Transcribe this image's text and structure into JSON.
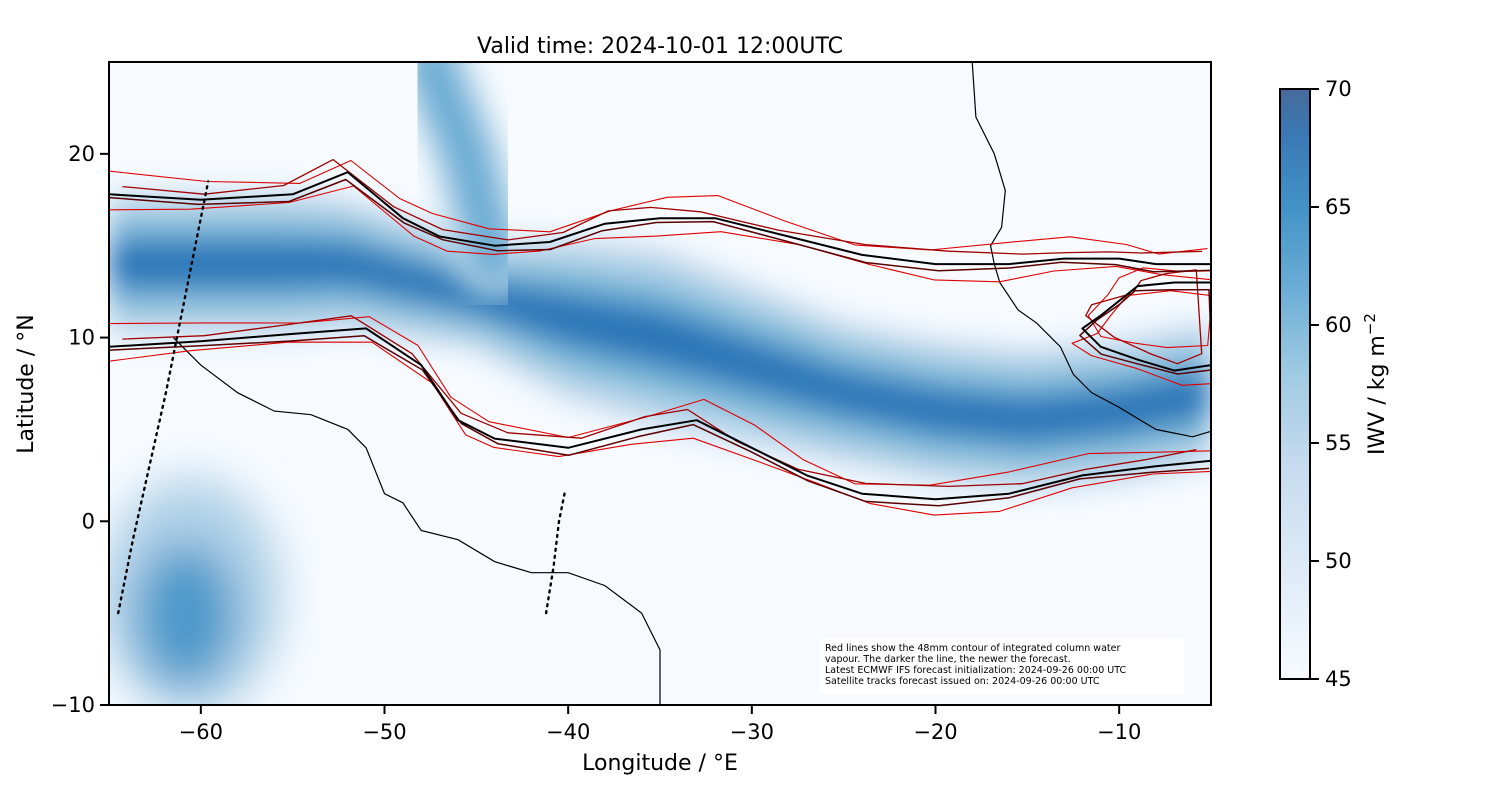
{
  "title": "Valid time: 2024-10-01 12:00UTC",
  "x_axis": {
    "label": "Longitude / °E",
    "range": [
      -65,
      -5
    ],
    "ticks": [
      {
        "value": -60,
        "label": "−60"
      },
      {
        "value": -50,
        "label": "−50"
      },
      {
        "value": -40,
        "label": "−40"
      },
      {
        "value": -30,
        "label": "−30"
      },
      {
        "value": -20,
        "label": "−20"
      },
      {
        "value": -10,
        "label": "−10"
      }
    ]
  },
  "y_axis": {
    "label": "Latitude / °N",
    "range": [
      -10,
      25
    ],
    "ticks": [
      {
        "value": 20,
        "label": "20"
      },
      {
        "value": 10,
        "label": "10"
      },
      {
        "value": 0,
        "label": "0"
      },
      {
        "value": -10,
        "label": "−10"
      }
    ]
  },
  "colorbar": {
    "label": "IWV / kg m",
    "label_superscript": "−2",
    "range": [
      45,
      70
    ],
    "ticks": [
      {
        "value": 70,
        "label": "70"
      },
      {
        "value": 65,
        "label": "65"
      },
      {
        "value": 60,
        "label": "60"
      },
      {
        "value": 55,
        "label": "55"
      },
      {
        "value": 50,
        "label": "50"
      },
      {
        "value": 45,
        "label": "45"
      }
    ],
    "colors": [
      "#f7fbff",
      "#deebf7",
      "#c6dbef",
      "#9ecae1",
      "#6baed6",
      "#4292c6",
      "#2171b5",
      "#466a9a"
    ]
  },
  "annotation": {
    "lines": [
      "Red lines show the 48mm contour of integrated column water",
      "vapour. The darker the line, the newer the forecast.",
      "Latest ECMWF IFS forecast initialization: 2024-09-26 00:00 UTC",
      "Satellite tracks forecast issued on: 2024-09-26 00:00 UTC"
    ]
  },
  "colors": {
    "contour_old": "#e00000",
    "contour_mid": "#a00000",
    "contour_newer": "#5a0000",
    "contour_latest": "#000000",
    "coastline": "#000000",
    "sat_track": "#000000"
  },
  "chart_data": {
    "type": "heatmap",
    "lon_range": [
      -65,
      -5
    ],
    "lat_range": [
      -10,
      25
    ],
    "field": "IWV",
    "value_range": [
      45,
      70
    ],
    "iwv_band": {
      "comment_free": true,
      "center_lat_by_lon": [
        [
          -65,
          14
        ],
        [
          -58,
          14
        ],
        [
          -52,
          14
        ],
        [
          -46,
          12.5
        ],
        [
          -40,
          11
        ],
        [
          -35,
          10
        ],
        [
          -30,
          8.5
        ],
        [
          -25,
          7
        ],
        [
          -20,
          6
        ],
        [
          -15,
          5.5
        ],
        [
          -10,
          6
        ],
        [
          -5,
          7
        ]
      ],
      "half_width_by_lon": [
        [
          -65,
          4
        ],
        [
          -55,
          4
        ],
        [
          -45,
          3
        ],
        [
          -40,
          4.5
        ],
        [
          -35,
          5
        ],
        [
          -30,
          4.5
        ],
        [
          -25,
          4
        ],
        [
          -20,
          4
        ],
        [
          -15,
          4
        ],
        [
          -10,
          4
        ],
        [
          -5,
          4
        ]
      ],
      "peak_value": 66
    },
    "arm_polyline": [
      [
        -47.5,
        25
      ],
      [
        -45.5,
        20
      ],
      [
        -44.5,
        16
      ],
      [
        -44,
        14
      ]
    ],
    "sa_blob": {
      "lon": [
        -65,
        -55
      ],
      "lat": [
        -10,
        3
      ],
      "peak_value": 62
    },
    "sat_tracks": [
      [
        [
          -64.5,
          -5
        ],
        [
          -63.7,
          -1
        ],
        [
          -62.8,
          3
        ],
        [
          -61.9,
          7
        ],
        [
          -61.1,
          11
        ],
        [
          -60.3,
          15
        ],
        [
          -59.6,
          18.5
        ]
      ],
      [
        [
          -41.2,
          -5
        ],
        [
          -40.8,
          -2.5
        ],
        [
          -40.5,
          0
        ],
        [
          -40.2,
          1.5
        ]
      ]
    ],
    "contours_48mm": {
      "north_edge": [
        [
          -65,
          17.8
        ],
        [
          -60,
          17.5
        ],
        [
          -55,
          17.8
        ],
        [
          -52,
          19
        ],
        [
          -49,
          16.5
        ],
        [
          -47,
          15.5
        ],
        [
          -44,
          15
        ],
        [
          -41,
          15.2
        ],
        [
          -38,
          16.2
        ],
        [
          -35,
          16.5
        ],
        [
          -32,
          16.5
        ],
        [
          -28,
          15.5
        ],
        [
          -24,
          14.5
        ],
        [
          -20,
          14
        ],
        [
          -16,
          14
        ],
        [
          -13,
          14.3
        ],
        [
          -10,
          14.3
        ],
        [
          -8,
          14
        ],
        [
          -5,
          14
        ]
      ],
      "south_edge": [
        [
          -65,
          9.5
        ],
        [
          -60,
          9.8
        ],
        [
          -55,
          10.2
        ],
        [
          -51,
          10.5
        ],
        [
          -48,
          8.5
        ],
        [
          -46,
          5.5
        ],
        [
          -44,
          4.5
        ],
        [
          -40,
          4
        ],
        [
          -36,
          5
        ],
        [
          -33,
          5.5
        ],
        [
          -30,
          4
        ],
        [
          -27,
          2.5
        ],
        [
          -24,
          1.5
        ],
        [
          -20,
          1.2
        ],
        [
          -16,
          1.5
        ],
        [
          -12,
          2.5
        ],
        [
          -8,
          3
        ],
        [
          -5,
          3.3
        ]
      ],
      "east_north_loop": [
        [
          -10,
          12
        ],
        [
          -9,
          12.8
        ],
        [
          -7,
          13
        ],
        [
          -5,
          13
        ],
        [
          -5,
          8.5
        ],
        [
          -7,
          8.2
        ],
        [
          -9,
          8.8
        ],
        [
          -11,
          9.5
        ],
        [
          -12,
          10.5
        ],
        [
          -11,
          11.2
        ]
      ]
    },
    "coastlines": {
      "africa_west": [
        [
          -18,
          25
        ],
        [
          -17.8,
          22
        ],
        [
          -16.8,
          20
        ],
        [
          -16.2,
          18
        ],
        [
          -16.4,
          16
        ],
        [
          -17,
          15
        ],
        [
          -16.8,
          14
        ],
        [
          -16.5,
          13
        ],
        [
          -15.5,
          11.5
        ],
        [
          -14.5,
          10.8
        ],
        [
          -13.2,
          9.5
        ],
        [
          -12.5,
          8
        ],
        [
          -11.5,
          7
        ],
        [
          -10,
          6.2
        ],
        [
          -8,
          5
        ],
        [
          -6,
          4.6
        ],
        [
          -5,
          4.9
        ]
      ],
      "south_america_north": [
        [
          -61.5,
          10
        ],
        [
          -60,
          8.5
        ],
        [
          -58,
          7
        ],
        [
          -56,
          6
        ],
        [
          -54,
          5.8
        ],
        [
          -52,
          5
        ],
        [
          -51,
          4
        ],
        [
          -50,
          1.5
        ],
        [
          -49,
          1
        ],
        [
          -48,
          -0.5
        ],
        [
          -46,
          -1
        ],
        [
          -44,
          -2.2
        ],
        [
          -42,
          -2.8
        ],
        [
          -40,
          -2.8
        ],
        [
          -38,
          -3.5
        ],
        [
          -36,
          -5
        ],
        [
          -35,
          -7
        ],
        [
          -35,
          -10
        ]
      ]
    }
  }
}
